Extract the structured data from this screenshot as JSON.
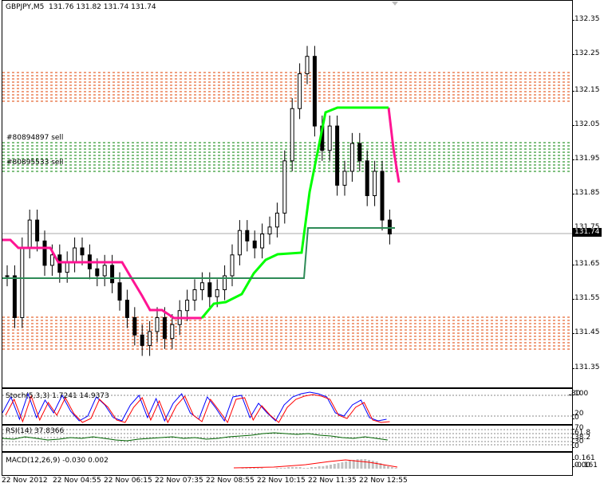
{
  "header": {
    "symbol_label": "GBPJPY,M5",
    "ohlc_label": "131.76 131.82 131.74 131.74"
  },
  "main_chart": {
    "price_axis_ticks": [
      "132.35",
      "132.25",
      "132.15",
      "132.05",
      "131.95",
      "131.85",
      "131.75",
      "131.65",
      "131.55",
      "131.45",
      "131.35"
    ],
    "current_price": "131.74",
    "order_labels": [
      "#80894897 sell",
      "#80895533 sell"
    ],
    "colors": {
      "resistance": "#e04000",
      "green_zone": "#008000",
      "magenta": "#ff1493",
      "lime": "#00ff00",
      "teal": "#2e8b57"
    }
  },
  "stoch": {
    "label": "Stoch(5,3,3) 1.7241 14.9373",
    "axis": [
      "100",
      "80",
      "20",
      "0"
    ]
  },
  "rsi": {
    "label": "RSI(14) 37.8366",
    "axis": [
      "70",
      "61.8",
      "38.2",
      "30",
      "0"
    ]
  },
  "macd": {
    "label": "MACD(12,26,9) -0.030 0.002",
    "axis": [
      "0.161",
      "0.00",
      "-0.161"
    ]
  },
  "time_axis": [
    "22 Nov 2012",
    "22 Nov 04:55",
    "22 Nov 06:15",
    "22 Nov 07:35",
    "22 Nov 08:55",
    "22 Nov 10:15",
    "22 Nov 11:35",
    "22 Nov 12:55"
  ],
  "chart_data": {
    "type": "candlestick",
    "symbol": "GBPJPY",
    "timeframe": "M5",
    "ylim": [
      131.3,
      132.4
    ],
    "close_approx": [
      131.62,
      131.5,
      131.7,
      131.78,
      131.72,
      131.65,
      131.68,
      131.63,
      131.66,
      131.7,
      131.68,
      131.64,
      131.62,
      131.65,
      131.6,
      131.55,
      131.5,
      131.45,
      131.42,
      131.46,
      131.5,
      131.44,
      131.48,
      131.52,
      131.55,
      131.58,
      131.6,
      131.56,
      131.58,
      131.62,
      131.68,
      131.75,
      131.72,
      131.7,
      131.74,
      131.76,
      131.8,
      131.95,
      132.1,
      132.2,
      132.25,
      132.05,
      131.98,
      132.05,
      131.88,
      131.92,
      132.0,
      131.95,
      131.85,
      131.92,
      131.78,
      131.74
    ]
  }
}
